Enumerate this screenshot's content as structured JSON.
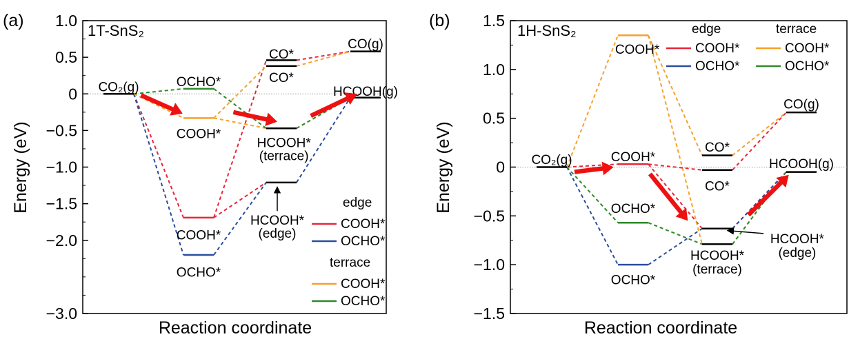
{
  "colors": {
    "edge_cooh": "#e8263a",
    "edge_ocho": "#2c4e9e",
    "terrace_cooh": "#f7a02a",
    "terrace_ocho": "#2e8a2a",
    "level": "#000000",
    "arrow": "#ee1111"
  },
  "chart_data": [
    {
      "type": "line",
      "panel_label": "(a)",
      "title": "1T-SnS₂",
      "xlabel": "Reaction coordinate",
      "ylabel": "Energy (eV)",
      "ylim": [
        -3.0,
        1.0
      ],
      "yticks": [
        1.0,
        0.5,
        0,
        -0.5,
        -1.0,
        -1.5,
        -2.0,
        -3.0
      ],
      "ytick_labels": [
        "1.0",
        "0.5",
        "0",
        "−0.5",
        "−1.0",
        "−1.5",
        "−2.0",
        "−3.0"
      ],
      "grid": false,
      "legend": {
        "placement": "bottom-right",
        "group1": "edge",
        "group2": "terrace",
        "entries": [
          "COOH*",
          "OCHO*",
          "COOH*",
          "OCHO*"
        ]
      },
      "series": [
        {
          "name": "COOH*",
          "group": "edge",
          "color_key": "edge_cooh",
          "x": [
            0,
            1,
            2
          ],
          "y": [
            0,
            -1.69,
            -1.21
          ]
        },
        {
          "name": "OCHO*",
          "group": "edge",
          "color_key": "edge_ocho",
          "x": [
            0,
            1,
            2,
            3
          ],
          "y": [
            0,
            -2.2,
            -1.21,
            -0.05
          ]
        },
        {
          "name": "COOH*",
          "group": "terrace",
          "color_key": "terrace_cooh",
          "x": [
            0,
            1,
            2,
            3
          ],
          "y": [
            0,
            -0.33,
            -0.47,
            -0.05
          ]
        },
        {
          "name": "OCHO*",
          "group": "terrace",
          "color_key": "terrace_ocho",
          "x": [
            0,
            1,
            2,
            3
          ],
          "y": [
            0,
            0.07,
            -0.47,
            -0.05
          ]
        }
      ],
      "extra_segments": [
        {
          "color_key": "edge_cooh",
          "from": [
            1,
            -1.69
          ],
          "to": [
            2,
            0.46
          ]
        },
        {
          "color_key": "edge_cooh",
          "from": [
            2,
            0.46
          ],
          "to": [
            3,
            0.58
          ]
        },
        {
          "color_key": "terrace_cooh",
          "from": [
            1,
            -0.33
          ],
          "to": [
            2,
            0.38
          ]
        },
        {
          "color_key": "terrace_cooh",
          "from": [
            2,
            0.38
          ],
          "to": [
            3,
            0.58
          ]
        }
      ],
      "levels": [
        {
          "x": 0,
          "y": 0,
          "color_key": "level"
        },
        {
          "x": 1,
          "y": 0.07,
          "color_key": "terrace_ocho"
        },
        {
          "x": 1,
          "y": -0.33,
          "color_key": "terrace_cooh"
        },
        {
          "x": 1,
          "y": -1.69,
          "color_key": "edge_cooh"
        },
        {
          "x": 1,
          "y": -2.2,
          "color_key": "edge_ocho"
        },
        {
          "x": 2,
          "y": 0.46,
          "color_key": "level"
        },
        {
          "x": 2,
          "y": 0.38,
          "color_key": "level"
        },
        {
          "x": 2,
          "y": -0.47,
          "color_key": "level"
        },
        {
          "x": 2,
          "y": -1.21,
          "color_key": "level"
        },
        {
          "x": 3,
          "y": 0.58,
          "color_key": "level"
        },
        {
          "x": 3,
          "y": -0.05,
          "color_key": "level"
        }
      ],
      "annotations": [
        {
          "text": "CO₂(g)",
          "x": 0,
          "y": 0.1
        },
        {
          "text": "OCHO*",
          "x": 1,
          "y": 0.17
        },
        {
          "text": "COOH*",
          "x": 1,
          "y": -0.54
        },
        {
          "text": "COOH*",
          "x": 1,
          "y": -1.92
        },
        {
          "text": "OCHO*",
          "x": 1,
          "y": -2.43
        },
        {
          "text": "CO*",
          "x": 2,
          "y": 0.55
        },
        {
          "text": "CO*",
          "x": 2,
          "y": 0.23
        },
        {
          "text": "HCOOH*",
          "x": 2.03,
          "y": -0.66
        },
        {
          "text": "(terrace)",
          "x": 2.03,
          "y": -0.84
        },
        {
          "text": "HCOOH*",
          "x": 1.95,
          "y": -1.72
        },
        {
          "text": "(edge)",
          "x": 1.95,
          "y": -1.9
        },
        {
          "text": "CO(g)",
          "x": 3,
          "y": 0.69
        },
        {
          "text": "HCOOH(g)",
          "x": 3,
          "y": 0.04
        }
      ],
      "pointer": {
        "from": [
          1.95,
          -1.6
        ],
        "to": [
          1.95,
          -1.27
        ]
      },
      "red_arrows": [
        {
          "from": [
            0.28,
            -0.02
          ],
          "to": [
            0.8,
            -0.27
          ]
        },
        {
          "from": [
            1.42,
            -0.25
          ],
          "to": [
            1.95,
            -0.38
          ]
        },
        {
          "from": [
            2.35,
            -0.3
          ],
          "to": [
            2.9,
            0.0
          ]
        }
      ]
    },
    {
      "type": "line",
      "panel_label": "(b)",
      "title": "1H-SnS₂",
      "xlabel": "Reaction coordinate",
      "ylabel": "Energy (eV)",
      "ylim": [
        -1.5,
        1.5
      ],
      "yticks": [
        1.5,
        1.0,
        0.5,
        0,
        -0.5,
        -1.0,
        -1.5
      ],
      "ytick_labels": [
        "1.5",
        "1.0",
        "0.5",
        "0",
        "−0.5",
        "−1.0",
        "−1.5"
      ],
      "grid": false,
      "legend": {
        "placement": "top-right",
        "group1": "edge",
        "group2": "terrace",
        "entries": [
          "COOH*",
          "OCHO*",
          "COOH*",
          "OCHO*"
        ]
      },
      "series": [
        {
          "name": "COOH*",
          "group": "edge",
          "color_key": "edge_cooh",
          "x": [
            0,
            1,
            2,
            3
          ],
          "y": [
            0,
            0.03,
            -0.63,
            -0.05
          ]
        },
        {
          "name": "OCHO*",
          "group": "edge",
          "color_key": "edge_ocho",
          "x": [
            0,
            1,
            2,
            3
          ],
          "y": [
            0,
            -1.0,
            -0.63,
            -0.05
          ]
        },
        {
          "name": "COOH*",
          "group": "terrace",
          "color_key": "terrace_cooh",
          "x": [
            0,
            1,
            2,
            3
          ],
          "y": [
            0,
            1.35,
            -0.79,
            -0.05
          ]
        },
        {
          "name": "OCHO*",
          "group": "terrace",
          "color_key": "terrace_ocho",
          "x": [
            0,
            1,
            2,
            3
          ],
          "y": [
            0,
            -0.57,
            -0.79,
            -0.05
          ]
        }
      ],
      "extra_segments": [
        {
          "color_key": "edge_cooh",
          "from": [
            1,
            0.03
          ],
          "to": [
            2,
            -0.03
          ]
        },
        {
          "color_key": "edge_cooh",
          "from": [
            2,
            -0.03
          ],
          "to": [
            3,
            0.56
          ]
        },
        {
          "color_key": "terrace_cooh",
          "from": [
            1,
            1.35
          ],
          "to": [
            2,
            0.12
          ]
        },
        {
          "color_key": "terrace_cooh",
          "from": [
            2,
            0.12
          ],
          "to": [
            3,
            0.56
          ]
        }
      ],
      "levels": [
        {
          "x": 0,
          "y": 0,
          "color_key": "level"
        },
        {
          "x": 1,
          "y": 1.35,
          "color_key": "terrace_cooh"
        },
        {
          "x": 1,
          "y": 0.03,
          "color_key": "edge_cooh"
        },
        {
          "x": 1,
          "y": -0.57,
          "color_key": "terrace_ocho"
        },
        {
          "x": 1,
          "y": -1.0,
          "color_key": "edge_ocho"
        },
        {
          "x": 2,
          "y": 0.12,
          "color_key": "level"
        },
        {
          "x": 2,
          "y": -0.03,
          "color_key": "level"
        },
        {
          "x": 2,
          "y": -0.63,
          "color_key": "level"
        },
        {
          "x": 2,
          "y": -0.79,
          "color_key": "level"
        },
        {
          "x": 3,
          "y": 0.56,
          "color_key": "level"
        },
        {
          "x": 3,
          "y": -0.05,
          "color_key": "level"
        }
      ],
      "annotations": [
        {
          "text": "CO₂(g)",
          "x": 0,
          "y": 0.08
        },
        {
          "text": "COOH*",
          "x": 1.05,
          "y": 1.21
        },
        {
          "text": "COOH*",
          "x": 1,
          "y": 0.11
        },
        {
          "text": "OCHO*",
          "x": 1,
          "y": -0.42
        },
        {
          "text": "OCHO*",
          "x": 1,
          "y": -1.15
        },
        {
          "text": "CO*",
          "x": 2,
          "y": 0.21
        },
        {
          "text": "CO*",
          "x": 2,
          "y": -0.19
        },
        {
          "text": "HCOOH*",
          "x": 2.0,
          "y": -0.9
        },
        {
          "text": "(terrace)",
          "x": 2.0,
          "y": -1.04
        },
        {
          "text": "HCOOH*",
          "x": 2.95,
          "y": -0.73
        },
        {
          "text": "(edge)",
          "x": 2.95,
          "y": -0.87
        },
        {
          "text": "CO(g)",
          "x": 3,
          "y": 0.65
        },
        {
          "text": "HCOOH(g)",
          "x": 3,
          "y": 0.04
        }
      ],
      "pointer": {
        "from": [
          2.55,
          -0.68
        ],
        "to": [
          2.12,
          -0.65
        ]
      },
      "red_arrows": [
        {
          "from": [
            0.28,
            -0.05
          ],
          "to": [
            0.76,
            0.0
          ]
        },
        {
          "from": [
            1.2,
            -0.07
          ],
          "to": [
            1.65,
            -0.55
          ]
        },
        {
          "from": [
            2.37,
            -0.49
          ],
          "to": [
            2.85,
            -0.08
          ]
        }
      ]
    }
  ]
}
